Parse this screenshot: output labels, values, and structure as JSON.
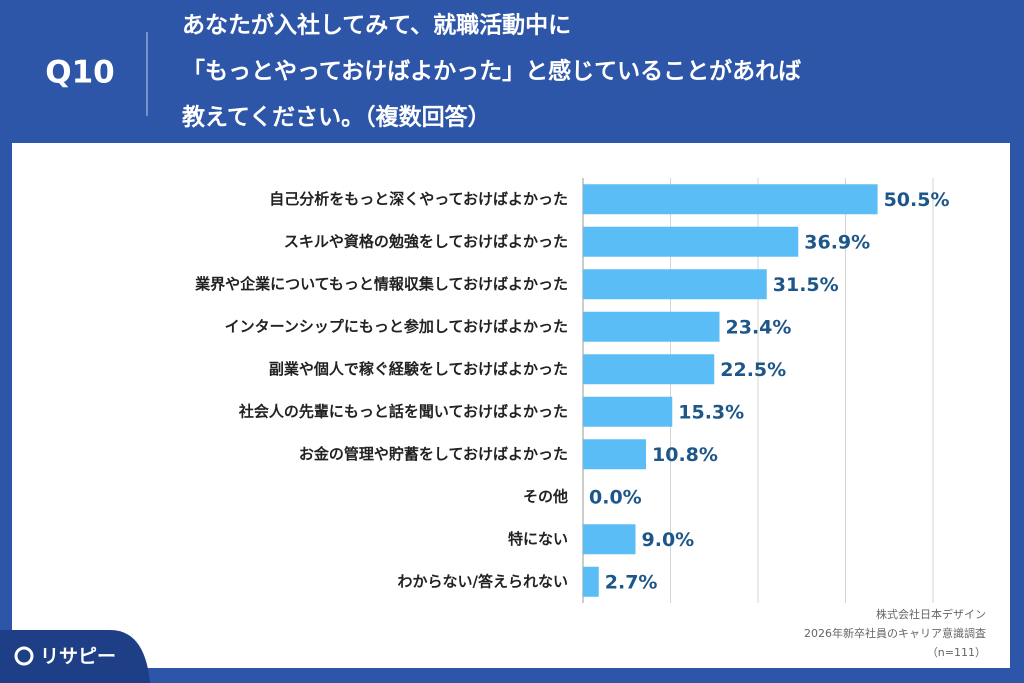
{
  "chart_data": {
    "type": "bar",
    "orientation": "horizontal",
    "question": "Q10",
    "title": [
      "あなたが入社してみて、就職活動中に",
      "「もっとやっておけばよかった」と感じていることがあれば",
      "教えてください。（複数回答）"
    ],
    "categories": [
      "自己分析をもっと深くやっておけばよかった",
      "スキルや資格の勉強をしておけばよかった",
      "業界や企業についてもっと情報収集しておけばよかった",
      "インターンシップにもっと参加しておけばよかった",
      "副業や個人で稼ぐ経験をしておけばよかった",
      "社会人の先輩にもっと話を聞いておけばよかった",
      "お金の管理や貯蓄をしておけばよかった",
      "その他",
      "特にない",
      "わからない/答えられない"
    ],
    "values": [
      50.5,
      36.9,
      31.5,
      23.4,
      22.5,
      15.3,
      10.8,
      0.0,
      9.0,
      2.7
    ],
    "value_labels": [
      "50.5%",
      "36.9%",
      "31.5%",
      "23.4%",
      "22.5%",
      "15.3%",
      "10.8%",
      "0.0%",
      "9.0%",
      "2.7%"
    ],
    "color": "#5bbdf6",
    "xlim": [
      0,
      60
    ],
    "xticks": [
      0,
      15,
      30,
      45,
      60
    ],
    "grid": true,
    "source": [
      "株式会社日本デザイン",
      "2026年新卒社員のキャリア意識調査",
      "（n=111）"
    ],
    "logo": "リサピー"
  }
}
